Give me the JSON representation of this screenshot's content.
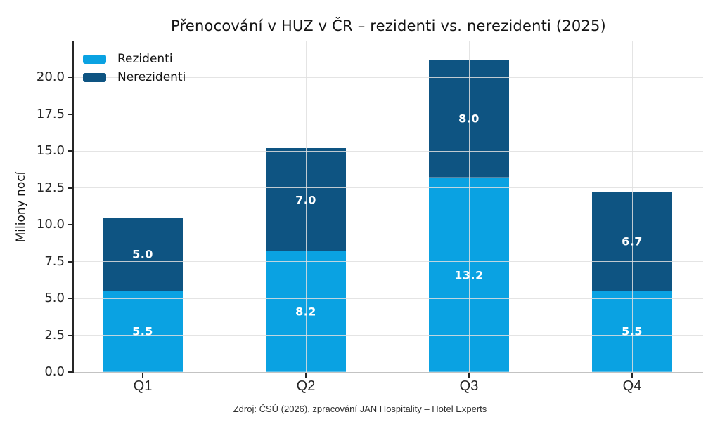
{
  "chart_data": {
    "type": "bar",
    "stacked": true,
    "title": "Přenocování v HUZ v ČR – rezidenti vs. nerezidenti (2025)",
    "ylabel": "Miliony nocí",
    "xlabel": "",
    "categories": [
      "Q1",
      "Q2",
      "Q3",
      "Q4"
    ],
    "series": [
      {
        "name": "Rezidenti",
        "color": "#0aa2e2",
        "values": [
          5.5,
          8.2,
          13.2,
          5.5
        ]
      },
      {
        "name": "Nerezidenti",
        "color": "#0e5482",
        "values": [
          5.0,
          7.0,
          8.0,
          6.7
        ]
      }
    ],
    "yticks": [
      0.0,
      2.5,
      5.0,
      7.5,
      10.0,
      12.5,
      15.0,
      17.5,
      20.0
    ],
    "ylim": [
      0,
      22.5
    ],
    "grid": true,
    "legend_position": "upper left",
    "value_labels": true,
    "value_label_color": "#ffffff",
    "background": "#ffffff",
    "spine_color": "#262626",
    "grid_color": "#dfdfdf"
  },
  "footer": {
    "source": "Zdroj: ČSÚ (2026), zpracování JAN Hospitality – Hotel Experts"
  }
}
